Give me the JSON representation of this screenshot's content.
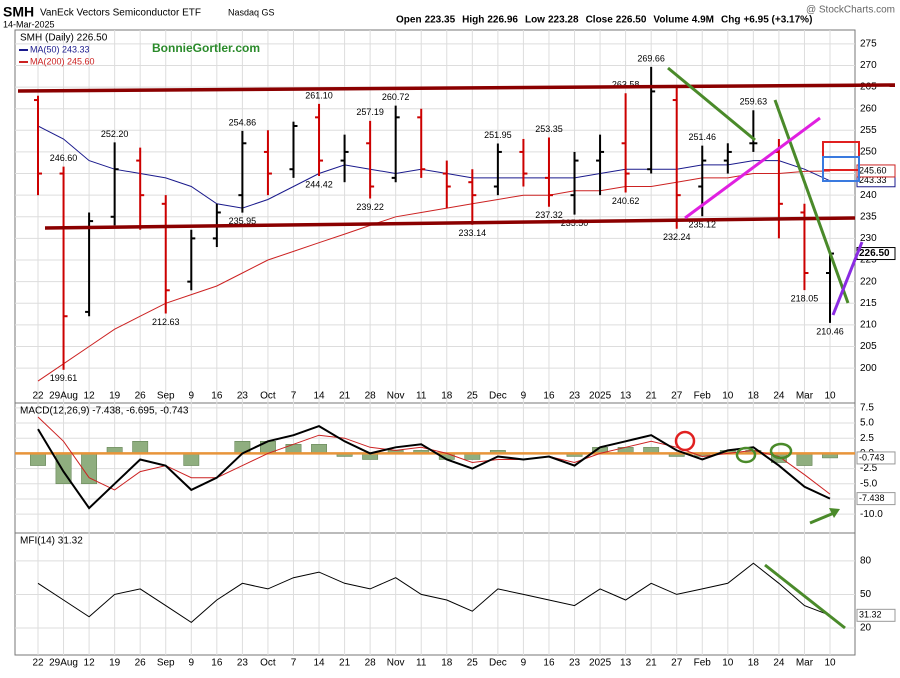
{
  "header": {
    "symbol": "SMH",
    "name": "VanEck Vectors Semiconductor ETF",
    "exchange": "Nasdaq GS",
    "date": "14-Mar-2025",
    "watermark": "@ StockCharts.com",
    "stats": [
      [
        "Open",
        "223.35"
      ],
      [
        "High",
        "226.96"
      ],
      [
        "Low",
        "223.28"
      ],
      [
        "Close",
        "226.50"
      ],
      [
        "Volume",
        "4.9M"
      ],
      [
        "Chg",
        "+6.95 (+3.17%)"
      ]
    ]
  },
  "chart_data": [
    {
      "type": "ohlc",
      "legend": "SMH (Daily) 226.50",
      "tag": "226.50",
      "watermark": "BonnieGortler.com",
      "colors": {
        "up": "#000000",
        "down": "#cc0000"
      },
      "grid": true,
      "categories": [
        "22",
        "29Aug",
        "12",
        "19",
        "26",
        "Sep",
        "9",
        "16",
        "23",
        "Oct",
        "7",
        "14",
        "21",
        "28",
        "Nov",
        "11",
        "18",
        "25",
        "Dec",
        "9",
        "16",
        "23",
        "2025",
        "13",
        "21",
        "27",
        "Feb",
        "10",
        "18",
        "24",
        "Mar",
        "10"
      ],
      "open": [
        262,
        245,
        213,
        235,
        248,
        238,
        220,
        230,
        240,
        250,
        246,
        258,
        248,
        252,
        244,
        258,
        245,
        243,
        242,
        250,
        244,
        240,
        248,
        252,
        246,
        262,
        242,
        248,
        252,
        250,
        236,
        222
      ],
      "high": [
        263,
        246.6,
        236,
        252.2,
        251,
        240,
        232,
        238,
        254.86,
        255,
        257,
        261.1,
        254,
        257.19,
        260.72,
        260,
        248,
        246,
        251.95,
        253,
        253.35,
        250,
        254,
        263.58,
        269.66,
        265,
        251.46,
        252,
        259.63,
        253,
        238,
        226.96
      ],
      "low": [
        240,
        199.61,
        212,
        233,
        232,
        212.63,
        218,
        228,
        235.95,
        240,
        244,
        244.42,
        243,
        239.22,
        243,
        244,
        237,
        233.14,
        240,
        242,
        237.32,
        235.5,
        240,
        240.62,
        245,
        232.24,
        235.12,
        245,
        250,
        230,
        218.05,
        210.46
      ],
      "close": [
        245,
        212,
        234,
        246,
        240,
        218,
        230,
        236,
        252,
        245,
        256,
        248,
        250,
        242,
        258,
        246,
        242,
        240,
        250,
        245,
        240,
        248,
        250,
        245,
        264,
        240,
        248,
        250,
        252,
        238,
        222,
        226.5
      ],
      "high_labels": [
        null,
        "246.60",
        null,
        "252.20",
        null,
        null,
        null,
        null,
        "254.86",
        null,
        null,
        "261.10",
        null,
        "257.19",
        "260.72",
        null,
        null,
        null,
        "251.95",
        null,
        "253.35",
        null,
        null,
        "263.58",
        "269.66",
        null,
        "251.46",
        null,
        "259.63",
        null,
        null,
        null
      ],
      "low_labels": [
        null,
        "199.61",
        null,
        null,
        null,
        "212.63",
        null,
        null,
        "235.95",
        null,
        null,
        "244.42",
        null,
        "239.22",
        null,
        null,
        null,
        "233.14",
        null,
        null,
        "237.32",
        "235.50",
        null,
        "240.62",
        null,
        "232.24",
        "235.12",
        null,
        null,
        null,
        "218.05",
        "210.46"
      ],
      "series": [
        {
          "name": "MA(50) 243.33",
          "tag": "243.33",
          "color": "#1a1a8c",
          "values": [
            256,
            253,
            248,
            246,
            245,
            244,
            242,
            238,
            237,
            239,
            242,
            245,
            247,
            246,
            245,
            246,
            245,
            244,
            244,
            244,
            244,
            244,
            245,
            246,
            246,
            246,
            247,
            247,
            248,
            248,
            246,
            243.33
          ]
        },
        {
          "name": "MA(200) 245.60",
          "tag": "245.60",
          "color": "#cc2222",
          "values": [
            197,
            201,
            205,
            209,
            212,
            215,
            217,
            219,
            222,
            225,
            227,
            229,
            231,
            233,
            235,
            236,
            237,
            238,
            239,
            240,
            240,
            241,
            241,
            242,
            242,
            243,
            244,
            244,
            245,
            245,
            245.5,
            245.6
          ]
        }
      ],
      "ylim": [
        195.4,
        278.2
      ],
      "yticks": [
        200,
        205,
        210,
        215,
        220,
        225,
        230,
        235,
        240,
        245,
        250,
        255,
        260,
        265,
        270,
        275
      ]
    },
    {
      "type": "macd",
      "legend": "MACD(12,26,9) -7.438, -6.695, -0.743",
      "grid": true,
      "series": [
        {
          "name": "MACD",
          "color": "#000000",
          "values": [
            4,
            -3,
            -9,
            -5,
            -1,
            -2,
            -6,
            -4,
            0,
            2,
            3,
            4.5,
            2,
            0,
            1,
            1.5,
            -1,
            -2.5,
            -0.5,
            -1,
            -0.5,
            -2,
            1,
            2,
            3,
            0.5,
            -1,
            0.5,
            1,
            -2,
            -5.5,
            -7.438
          ]
        },
        {
          "name": "Signal",
          "color": "#cc2222",
          "values": [
            6,
            2,
            -4,
            -6,
            -3,
            -2,
            -4,
            -4,
            -2,
            0,
            1.5,
            3,
            2.5,
            1,
            0.5,
            1,
            0,
            -1.5,
            -1,
            -1,
            -0.5,
            -1.5,
            0,
            1,
            2,
            1,
            -0.5,
            0,
            0.5,
            -0.5,
            -3.5,
            -6.695
          ]
        },
        {
          "name": "Histogram",
          "color": "#8fae7f",
          "values": [
            -2,
            -5,
            -5,
            1,
            2,
            0,
            -2,
            0,
            2,
            2,
            1.5,
            1.5,
            -0.5,
            -1,
            0.5,
            0.5,
            -1,
            -1,
            0.5,
            0,
            0,
            -0.5,
            1,
            1,
            1,
            -0.5,
            -0.5,
            0.5,
            0.5,
            -1.5,
            -2,
            -0.743
          ]
        }
      ],
      "ylim": [
        -13.1,
        8.3
      ],
      "yticks": [
        {
          "value": -10,
          "label": "-10.0"
        },
        {
          "value": -7.5,
          "label": "-7.5"
        },
        {
          "value": -5,
          "label": "-5.0"
        },
        -2.5,
        {
          "value": 0,
          "label": "0.0"
        },
        2.5,
        {
          "value": 5,
          "label": "5.0"
        },
        7.5
      ]
    },
    {
      "type": "mfi",
      "legend": "MFI(14) 31.32",
      "grid": true,
      "categories": [
        "22",
        "29Aug",
        "12",
        "19",
        "26",
        "Sep",
        "9",
        "16",
        "23",
        "Oct",
        "7",
        "14",
        "21",
        "28",
        "Nov",
        "11",
        "18",
        "25",
        "Dec",
        "9",
        "16",
        "23",
        "2025",
        "13",
        "21",
        "27",
        "Feb",
        "10",
        "18",
        "24",
        "Mar",
        "10"
      ],
      "series": [
        {
          "name": "MFI",
          "color": "#000000",
          "values": [
            60,
            45,
            30,
            50,
            55,
            40,
            25,
            45,
            60,
            55,
            65,
            70,
            60,
            55,
            65,
            50,
            45,
            35,
            55,
            50,
            45,
            40,
            55,
            45,
            60,
            50,
            55,
            60,
            78,
            60,
            40,
            31.32
          ]
        }
      ],
      "ylim": [
        -4.2,
        105
      ],
      "yticks": [
        20,
        50,
        80
      ]
    }
  ]
}
